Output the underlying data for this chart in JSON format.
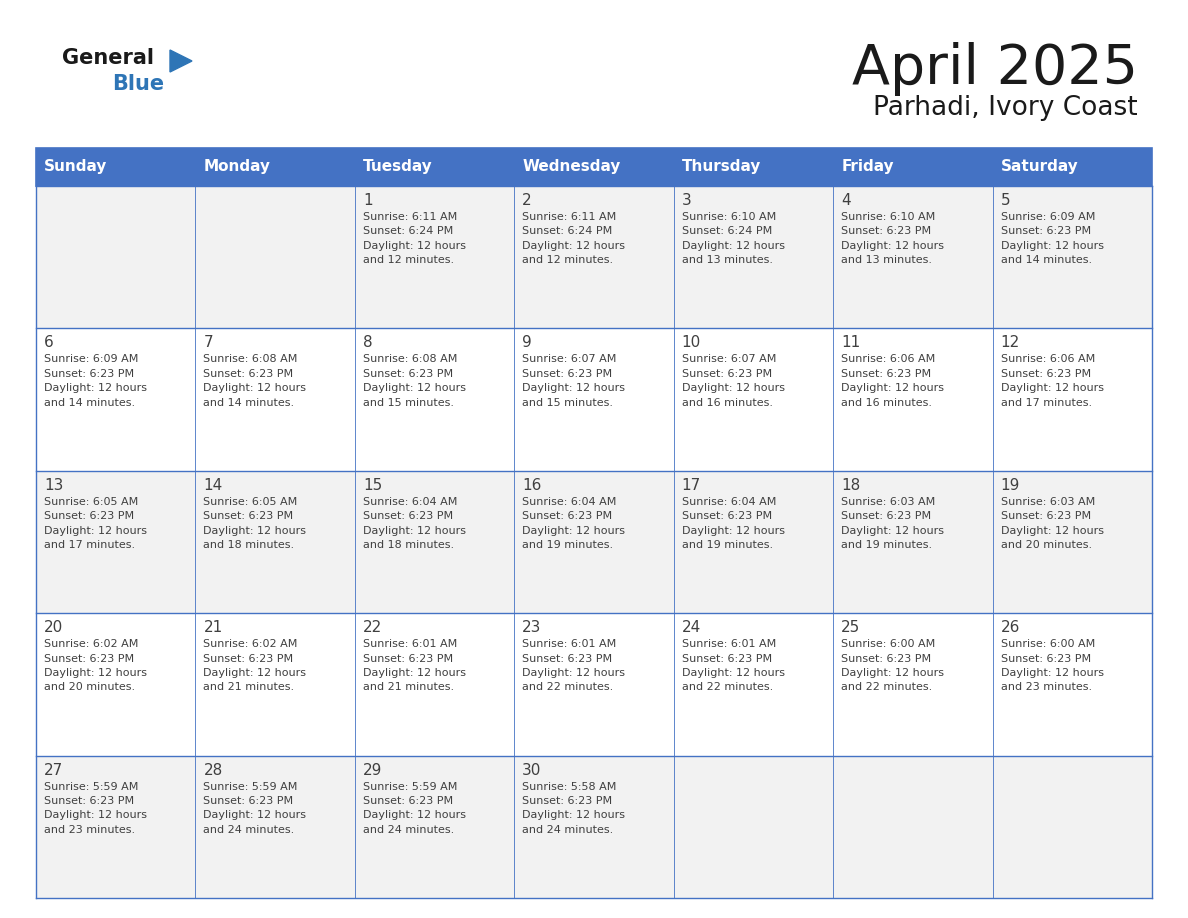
{
  "title": "April 2025",
  "subtitle": "Parhadi, Ivory Coast",
  "days_of_week": [
    "Sunday",
    "Monday",
    "Tuesday",
    "Wednesday",
    "Thursday",
    "Friday",
    "Saturday"
  ],
  "header_bg": "#4472C4",
  "header_text_color": "#FFFFFF",
  "row_bg_odd": "#F2F2F2",
  "row_bg_even": "#FFFFFF",
  "border_color": "#4472C4",
  "text_color": "#404040",
  "general_color": "#1a1a1a",
  "blue_color": "#2E75B6",
  "calendar_data": [
    [
      {
        "day": "",
        "info": ""
      },
      {
        "day": "",
        "info": ""
      },
      {
        "day": "1",
        "info": "Sunrise: 6:11 AM\nSunset: 6:24 PM\nDaylight: 12 hours\nand 12 minutes."
      },
      {
        "day": "2",
        "info": "Sunrise: 6:11 AM\nSunset: 6:24 PM\nDaylight: 12 hours\nand 12 minutes."
      },
      {
        "day": "3",
        "info": "Sunrise: 6:10 AM\nSunset: 6:24 PM\nDaylight: 12 hours\nand 13 minutes."
      },
      {
        "day": "4",
        "info": "Sunrise: 6:10 AM\nSunset: 6:23 PM\nDaylight: 12 hours\nand 13 minutes."
      },
      {
        "day": "5",
        "info": "Sunrise: 6:09 AM\nSunset: 6:23 PM\nDaylight: 12 hours\nand 14 minutes."
      }
    ],
    [
      {
        "day": "6",
        "info": "Sunrise: 6:09 AM\nSunset: 6:23 PM\nDaylight: 12 hours\nand 14 minutes."
      },
      {
        "day": "7",
        "info": "Sunrise: 6:08 AM\nSunset: 6:23 PM\nDaylight: 12 hours\nand 14 minutes."
      },
      {
        "day": "8",
        "info": "Sunrise: 6:08 AM\nSunset: 6:23 PM\nDaylight: 12 hours\nand 15 minutes."
      },
      {
        "day": "9",
        "info": "Sunrise: 6:07 AM\nSunset: 6:23 PM\nDaylight: 12 hours\nand 15 minutes."
      },
      {
        "day": "10",
        "info": "Sunrise: 6:07 AM\nSunset: 6:23 PM\nDaylight: 12 hours\nand 16 minutes."
      },
      {
        "day": "11",
        "info": "Sunrise: 6:06 AM\nSunset: 6:23 PM\nDaylight: 12 hours\nand 16 minutes."
      },
      {
        "day": "12",
        "info": "Sunrise: 6:06 AM\nSunset: 6:23 PM\nDaylight: 12 hours\nand 17 minutes."
      }
    ],
    [
      {
        "day": "13",
        "info": "Sunrise: 6:05 AM\nSunset: 6:23 PM\nDaylight: 12 hours\nand 17 minutes."
      },
      {
        "day": "14",
        "info": "Sunrise: 6:05 AM\nSunset: 6:23 PM\nDaylight: 12 hours\nand 18 minutes."
      },
      {
        "day": "15",
        "info": "Sunrise: 6:04 AM\nSunset: 6:23 PM\nDaylight: 12 hours\nand 18 minutes."
      },
      {
        "day": "16",
        "info": "Sunrise: 6:04 AM\nSunset: 6:23 PM\nDaylight: 12 hours\nand 19 minutes."
      },
      {
        "day": "17",
        "info": "Sunrise: 6:04 AM\nSunset: 6:23 PM\nDaylight: 12 hours\nand 19 minutes."
      },
      {
        "day": "18",
        "info": "Sunrise: 6:03 AM\nSunset: 6:23 PM\nDaylight: 12 hours\nand 19 minutes."
      },
      {
        "day": "19",
        "info": "Sunrise: 6:03 AM\nSunset: 6:23 PM\nDaylight: 12 hours\nand 20 minutes."
      }
    ],
    [
      {
        "day": "20",
        "info": "Sunrise: 6:02 AM\nSunset: 6:23 PM\nDaylight: 12 hours\nand 20 minutes."
      },
      {
        "day": "21",
        "info": "Sunrise: 6:02 AM\nSunset: 6:23 PM\nDaylight: 12 hours\nand 21 minutes."
      },
      {
        "day": "22",
        "info": "Sunrise: 6:01 AM\nSunset: 6:23 PM\nDaylight: 12 hours\nand 21 minutes."
      },
      {
        "day": "23",
        "info": "Sunrise: 6:01 AM\nSunset: 6:23 PM\nDaylight: 12 hours\nand 22 minutes."
      },
      {
        "day": "24",
        "info": "Sunrise: 6:01 AM\nSunset: 6:23 PM\nDaylight: 12 hours\nand 22 minutes."
      },
      {
        "day": "25",
        "info": "Sunrise: 6:00 AM\nSunset: 6:23 PM\nDaylight: 12 hours\nand 22 minutes."
      },
      {
        "day": "26",
        "info": "Sunrise: 6:00 AM\nSunset: 6:23 PM\nDaylight: 12 hours\nand 23 minutes."
      }
    ],
    [
      {
        "day": "27",
        "info": "Sunrise: 5:59 AM\nSunset: 6:23 PM\nDaylight: 12 hours\nand 23 minutes."
      },
      {
        "day": "28",
        "info": "Sunrise: 5:59 AM\nSunset: 6:23 PM\nDaylight: 12 hours\nand 24 minutes."
      },
      {
        "day": "29",
        "info": "Sunrise: 5:59 AM\nSunset: 6:23 PM\nDaylight: 12 hours\nand 24 minutes."
      },
      {
        "day": "30",
        "info": "Sunrise: 5:58 AM\nSunset: 6:23 PM\nDaylight: 12 hours\nand 24 minutes."
      },
      {
        "day": "",
        "info": ""
      },
      {
        "day": "",
        "info": ""
      },
      {
        "day": "",
        "info": ""
      }
    ]
  ]
}
